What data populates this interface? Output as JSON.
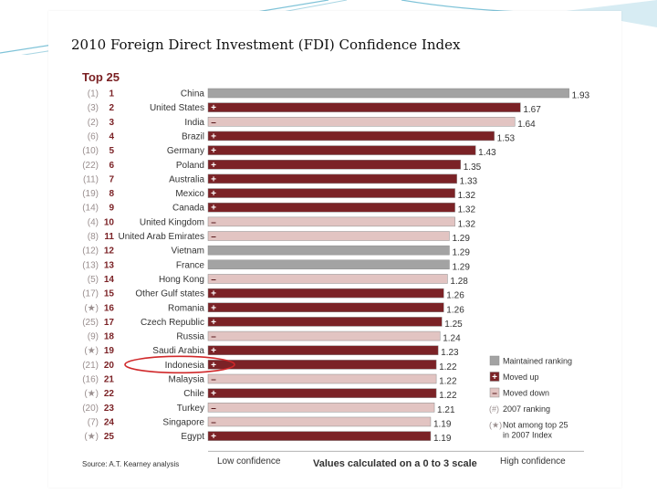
{
  "slide": {
    "title": "2010 Foreign Direct Investment (FDI) Confidence Index"
  },
  "chart_data": {
    "type": "bar",
    "orientation": "horizontal",
    "subtitle": "Top 25",
    "xlabel": "Values calculated on a 0 to 3 scale",
    "axis_low_label": "Low confidence",
    "axis_high_label": "High confidence",
    "source": "Source: A.T. Kearney analysis",
    "rows": [
      {
        "prev": "(1)",
        "rank": "1",
        "country": "China",
        "value": 1.93,
        "status": "maintained",
        "sign": ""
      },
      {
        "prev": "(3)",
        "rank": "2",
        "country": "United States",
        "value": 1.67,
        "status": "up",
        "sign": "+"
      },
      {
        "prev": "(2)",
        "rank": "3",
        "country": "India",
        "value": 1.64,
        "status": "down",
        "sign": "–"
      },
      {
        "prev": "(6)",
        "rank": "4",
        "country": "Brazil",
        "value": 1.53,
        "status": "up",
        "sign": "+"
      },
      {
        "prev": "(10)",
        "rank": "5",
        "country": "Germany",
        "value": 1.43,
        "status": "up",
        "sign": "+"
      },
      {
        "prev": "(22)",
        "rank": "6",
        "country": "Poland",
        "value": 1.35,
        "status": "up",
        "sign": "+"
      },
      {
        "prev": "(11)",
        "rank": "7",
        "country": "Australia",
        "value": 1.33,
        "status": "up",
        "sign": "+"
      },
      {
        "prev": "(19)",
        "rank": "8",
        "country": "Mexico",
        "value": 1.32,
        "status": "up",
        "sign": "+"
      },
      {
        "prev": "(14)",
        "rank": "9",
        "country": "Canada",
        "value": 1.32,
        "status": "up",
        "sign": "+"
      },
      {
        "prev": "(4)",
        "rank": "10",
        "country": "United Kingdom",
        "value": 1.32,
        "status": "down",
        "sign": "–"
      },
      {
        "prev": "(8)",
        "rank": "11",
        "country": "United Arab Emirates",
        "value": 1.29,
        "status": "down",
        "sign": "–"
      },
      {
        "prev": "(12)",
        "rank": "12",
        "country": "Vietnam",
        "value": 1.29,
        "status": "maintained",
        "sign": ""
      },
      {
        "prev": "(13)",
        "rank": "13",
        "country": "France",
        "value": 1.29,
        "status": "maintained",
        "sign": ""
      },
      {
        "prev": "(5)",
        "rank": "14",
        "country": "Hong Kong",
        "value": 1.28,
        "status": "down",
        "sign": "–"
      },
      {
        "prev": "(17)",
        "rank": "15",
        "country": "Other Gulf states",
        "value": 1.26,
        "status": "up",
        "sign": "+"
      },
      {
        "prev": "(★)",
        "rank": "16",
        "country": "Romania",
        "value": 1.26,
        "status": "up",
        "sign": "+"
      },
      {
        "prev": "(25)",
        "rank": "17",
        "country": "Czech Republic",
        "value": 1.25,
        "status": "up",
        "sign": "+"
      },
      {
        "prev": "(9)",
        "rank": "18",
        "country": "Russia",
        "value": 1.24,
        "status": "down",
        "sign": "–"
      },
      {
        "prev": "(★)",
        "rank": "19",
        "country": "Saudi Arabia",
        "value": 1.23,
        "status": "up",
        "sign": "+"
      },
      {
        "prev": "(21)",
        "rank": "20",
        "country": "Indonesia",
        "value": 1.22,
        "status": "up",
        "sign": "+",
        "highlight": true
      },
      {
        "prev": "(16)",
        "rank": "21",
        "country": "Malaysia",
        "value": 1.22,
        "status": "down",
        "sign": "–"
      },
      {
        "prev": "(★)",
        "rank": "22",
        "country": "Chile",
        "value": 1.22,
        "status": "up",
        "sign": "+"
      },
      {
        "prev": "(20)",
        "rank": "23",
        "country": "Turkey",
        "value": 1.21,
        "status": "down",
        "sign": "–"
      },
      {
        "prev": "(7)",
        "rank": "24",
        "country": "Singapore",
        "value": 1.19,
        "status": "down",
        "sign": "–"
      },
      {
        "prev": "(★)",
        "rank": "25",
        "country": "Egypt",
        "value": 1.19,
        "status": "up",
        "sign": "+"
      }
    ],
    "legend": [
      {
        "key": "maintained",
        "label": "Maintained ranking",
        "symbol": ""
      },
      {
        "key": "up",
        "label": "Moved up",
        "symbol": "+"
      },
      {
        "key": "down",
        "label": "Moved down",
        "symbol": "–"
      },
      {
        "key": "prev",
        "label": "2007 ranking",
        "symbol": "(#)"
      },
      {
        "key": "new",
        "label": "Not among top 25 in 2007 Index",
        "symbol": "(★)"
      }
    ],
    "colors": {
      "maintained": "#a3a3a3",
      "up": "#7b2226",
      "down": "#e2c4c2",
      "rank_text": "#7b2226",
      "prev_text": "#9a8f8f",
      "highlight": "#d0282a"
    }
  }
}
